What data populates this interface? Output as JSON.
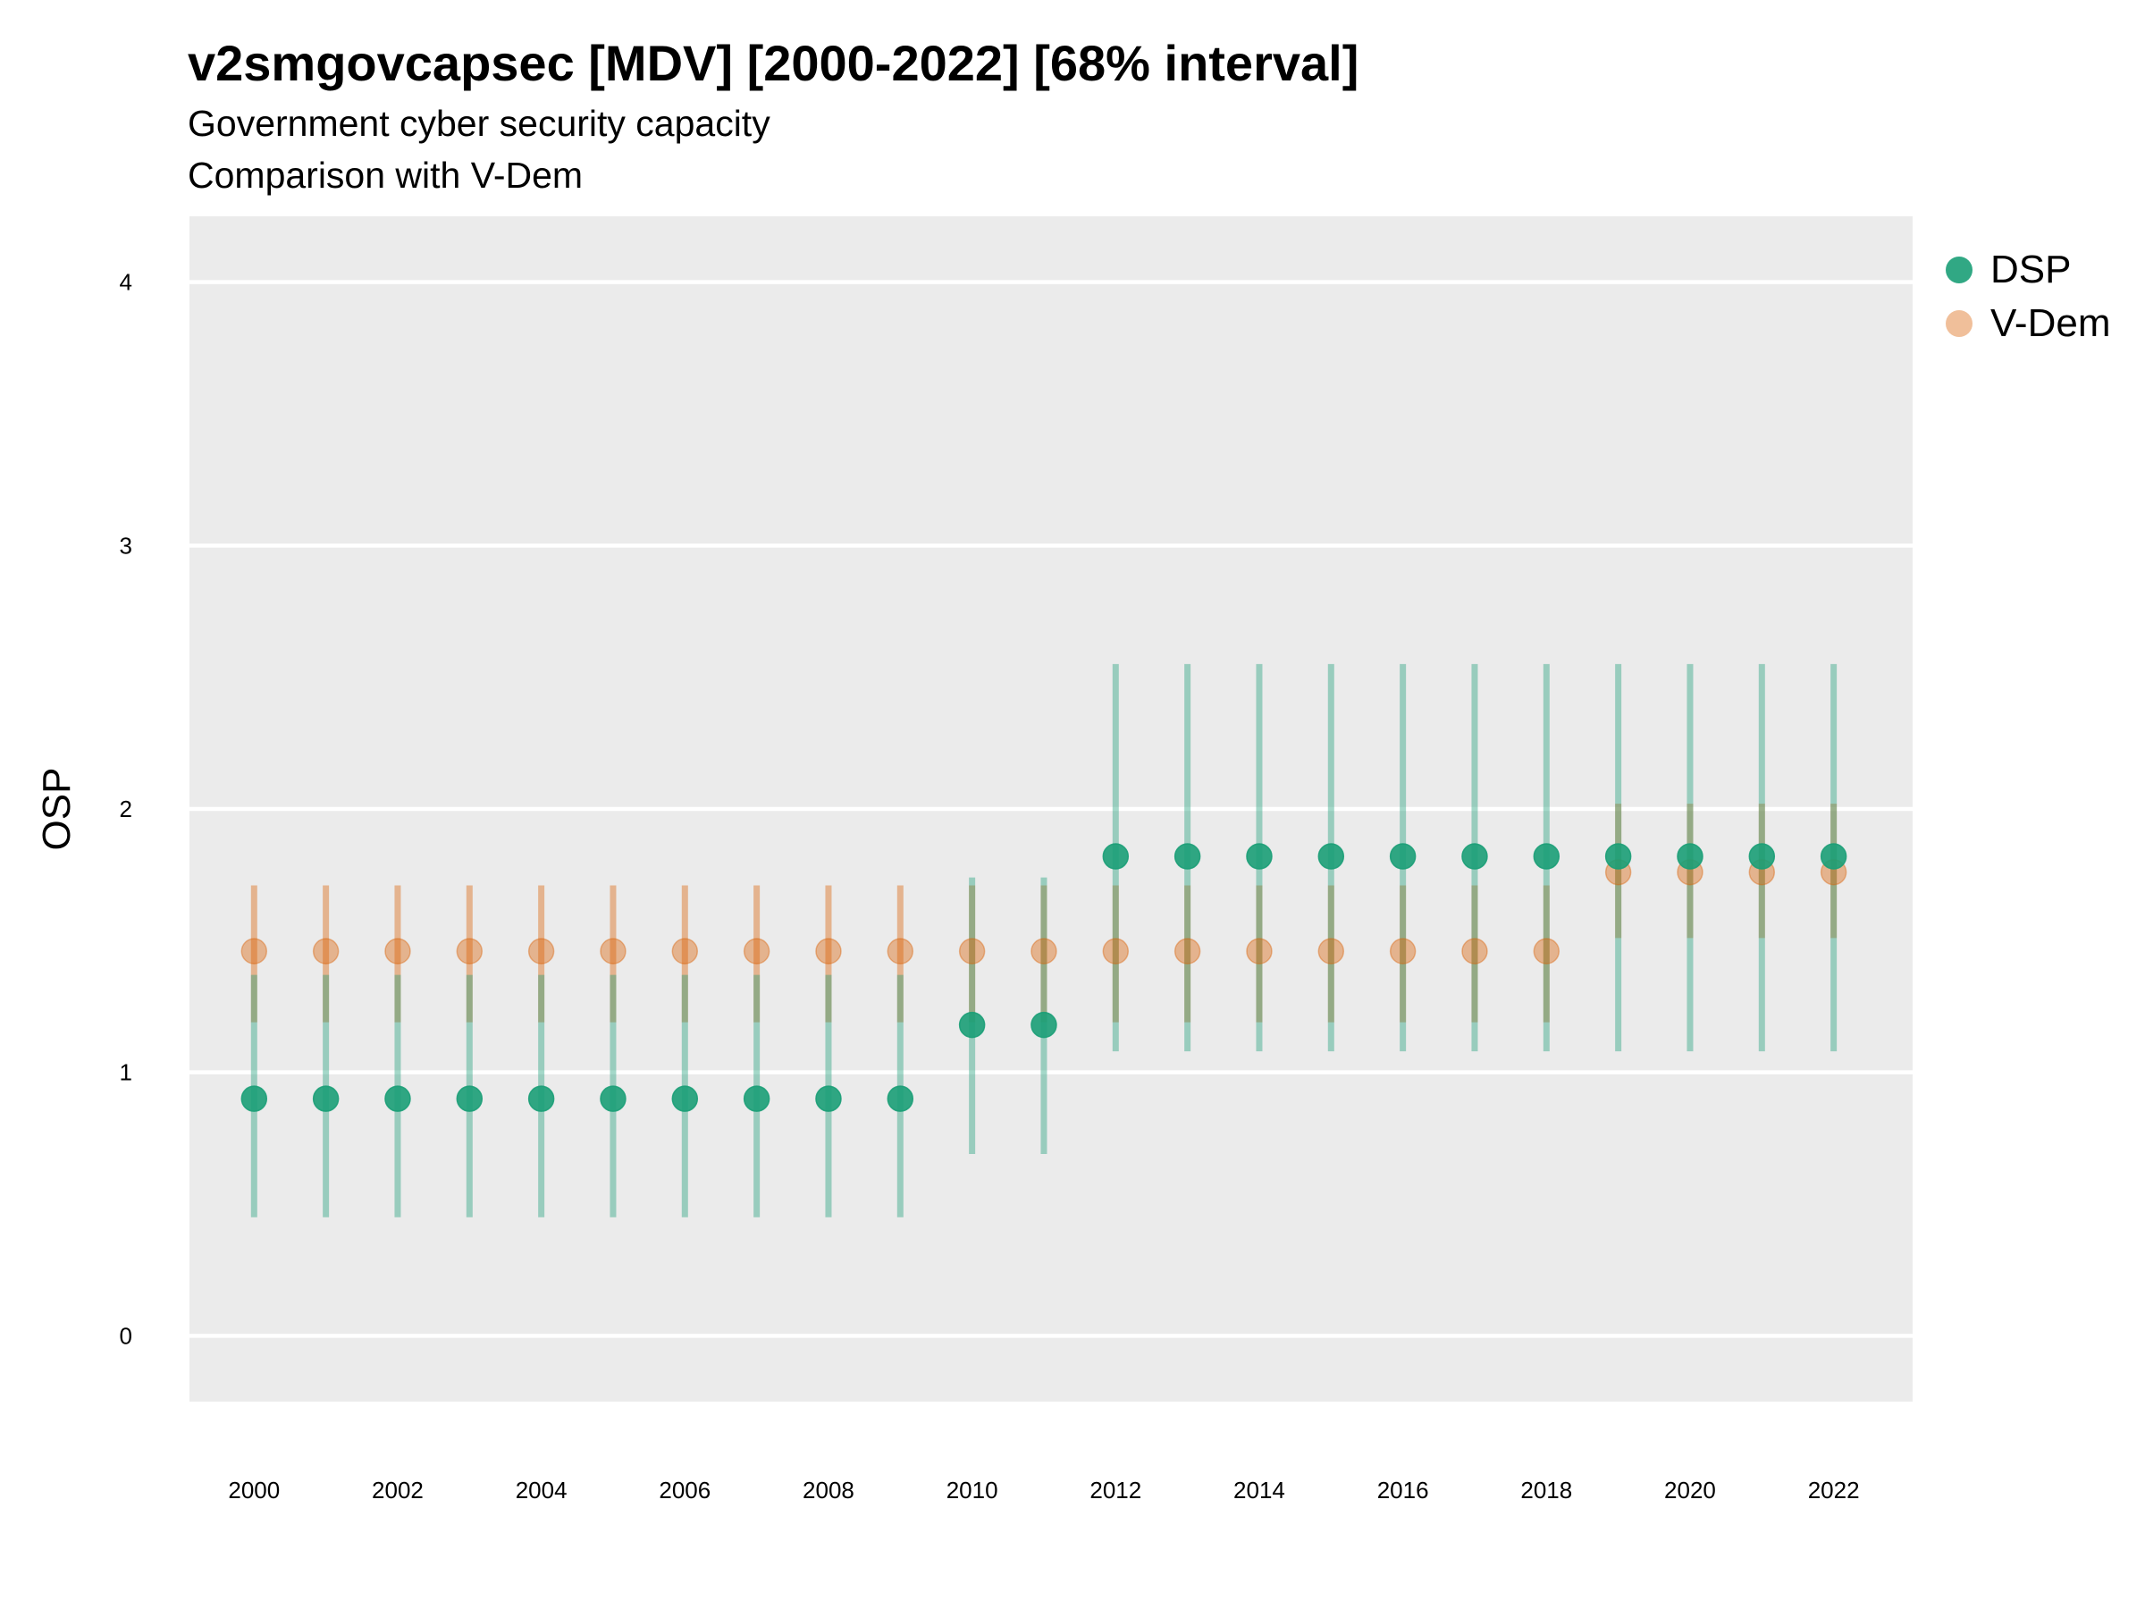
{
  "title": "v2smgovcapsec [MDV] [2000-2022] [68% interval]",
  "subtitle_1": "Government cyber security capacity",
  "subtitle_2": "Comparison with V-Dem",
  "colors": {
    "panel_bg": "#ebebeb",
    "grid": "#ffffff",
    "dsp": "#1b9e77",
    "vdem": "#d95f02"
  },
  "chart_data": {
    "type": "scatter",
    "title": "v2smgovcapsec [MDV] [2000-2022] [68% interval]",
    "subtitle": [
      "Government cyber security capacity",
      "Comparison with V-Dem"
    ],
    "xlabel": "",
    "ylabel": "OSP",
    "ylim": [
      -0.25,
      4.25
    ],
    "xlim": [
      1999.1,
      2023.1
    ],
    "y_ticks": [
      0,
      1,
      2,
      3,
      4
    ],
    "x_ticks": [
      2000,
      2002,
      2004,
      2006,
      2008,
      2010,
      2012,
      2014,
      2016,
      2018,
      2020,
      2022
    ],
    "grid": "major y only",
    "legend_position": "right-top",
    "error_bars": "68% interval",
    "x": [
      2000,
      2001,
      2002,
      2003,
      2004,
      2005,
      2006,
      2007,
      2008,
      2009,
      2010,
      2011,
      2012,
      2013,
      2014,
      2015,
      2016,
      2017,
      2018,
      2019,
      2020,
      2021,
      2022
    ],
    "series": [
      {
        "name": "DSP",
        "color": "#1b9e77",
        "values": [
          0.9,
          0.9,
          0.9,
          0.9,
          0.9,
          0.9,
          0.9,
          0.9,
          0.9,
          0.9,
          1.18,
          1.18,
          1.82,
          1.82,
          1.82,
          1.82,
          1.82,
          1.82,
          1.82,
          1.82,
          1.82,
          1.82,
          1.82
        ],
        "lower": [
          0.45,
          0.45,
          0.45,
          0.45,
          0.45,
          0.45,
          0.45,
          0.45,
          0.45,
          0.45,
          0.69,
          0.69,
          1.08,
          1.08,
          1.08,
          1.08,
          1.08,
          1.08,
          1.08,
          1.08,
          1.08,
          1.08,
          1.08
        ],
        "upper": [
          1.37,
          1.37,
          1.37,
          1.37,
          1.37,
          1.37,
          1.37,
          1.37,
          1.37,
          1.37,
          1.74,
          1.74,
          2.55,
          2.55,
          2.55,
          2.55,
          2.55,
          2.55,
          2.55,
          2.55,
          2.55,
          2.55,
          2.55
        ]
      },
      {
        "name": "V-Dem",
        "color": "#d95f02",
        "values": [
          1.46,
          1.46,
          1.46,
          1.46,
          1.46,
          1.46,
          1.46,
          1.46,
          1.46,
          1.46,
          1.46,
          1.46,
          1.46,
          1.46,
          1.46,
          1.46,
          1.46,
          1.46,
          1.46,
          1.76,
          1.76,
          1.76,
          1.76
        ],
        "lower": [
          1.19,
          1.19,
          1.19,
          1.19,
          1.19,
          1.19,
          1.19,
          1.19,
          1.19,
          1.19,
          1.19,
          1.19,
          1.19,
          1.19,
          1.19,
          1.19,
          1.19,
          1.19,
          1.19,
          1.51,
          1.51,
          1.51,
          1.51
        ],
        "upper": [
          1.71,
          1.71,
          1.71,
          1.71,
          1.71,
          1.71,
          1.71,
          1.71,
          1.71,
          1.71,
          1.71,
          1.71,
          1.71,
          1.71,
          1.71,
          1.71,
          1.71,
          1.71,
          1.71,
          2.02,
          2.02,
          2.02,
          2.02
        ]
      }
    ]
  }
}
